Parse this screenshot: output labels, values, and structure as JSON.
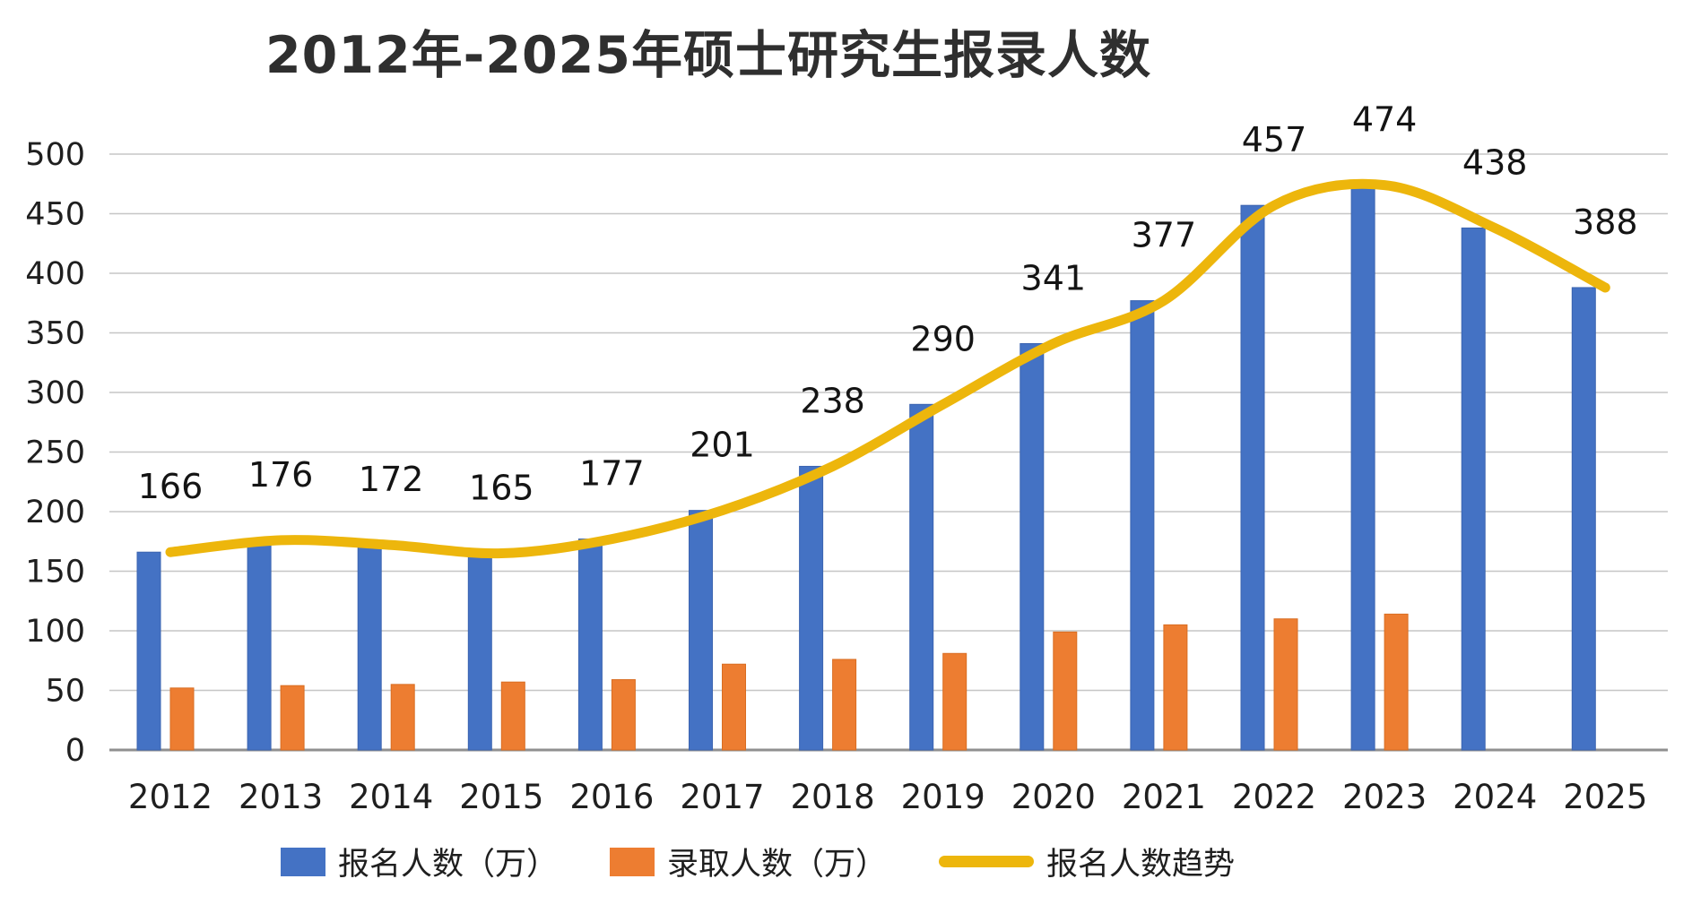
{
  "chart_data": {
    "type": "bar",
    "title": "2012年-2025年硕士研究生报录人数",
    "xlabel": "",
    "ylabel": "",
    "categories": [
      "2012",
      "2013",
      "2014",
      "2015",
      "2016",
      "2017",
      "2018",
      "2019",
      "2020",
      "2021",
      "2022",
      "2023",
      "2024",
      "2025"
    ],
    "series": [
      {
        "name": "报名人数（万）",
        "kind": "bar",
        "color": "#4472C4",
        "edge": "#3b64b0",
        "values": [
          166,
          176,
          172,
          165,
          177,
          201,
          238,
          290,
          341,
          377,
          457,
          474,
          438,
          388
        ],
        "data_labels": true
      },
      {
        "name": "录取人数（万）",
        "kind": "bar",
        "color": "#ED7D31",
        "edge": "#d96d22",
        "values": [
          52,
          54,
          55,
          57,
          59,
          72,
          76,
          81,
          99,
          105,
          110,
          114,
          null,
          null
        ],
        "data_labels": false
      },
      {
        "name": "报名人数趋势",
        "kind": "line",
        "color": "#EDB60C",
        "edge": "#EDB60C",
        "values": [
          166,
          176,
          172,
          165,
          177,
          201,
          238,
          290,
          341,
          377,
          457,
          474,
          438,
          388
        ],
        "data_labels": false
      }
    ],
    "ylim": [
      0,
      500
    ],
    "ytick_step": 50,
    "ytick_labels": [
      "0",
      "50",
      "100",
      "150",
      "200",
      "250",
      "300",
      "350",
      "400",
      "450",
      "500"
    ],
    "grid": true,
    "legend_position": "bottom",
    "colors": {
      "grid_line": "#c6c6c6",
      "axis_line": "#8f8f8f",
      "tick_text": "#1f1f1f",
      "data_label_text": "#141414",
      "title_text": "#2f2f2f"
    }
  }
}
